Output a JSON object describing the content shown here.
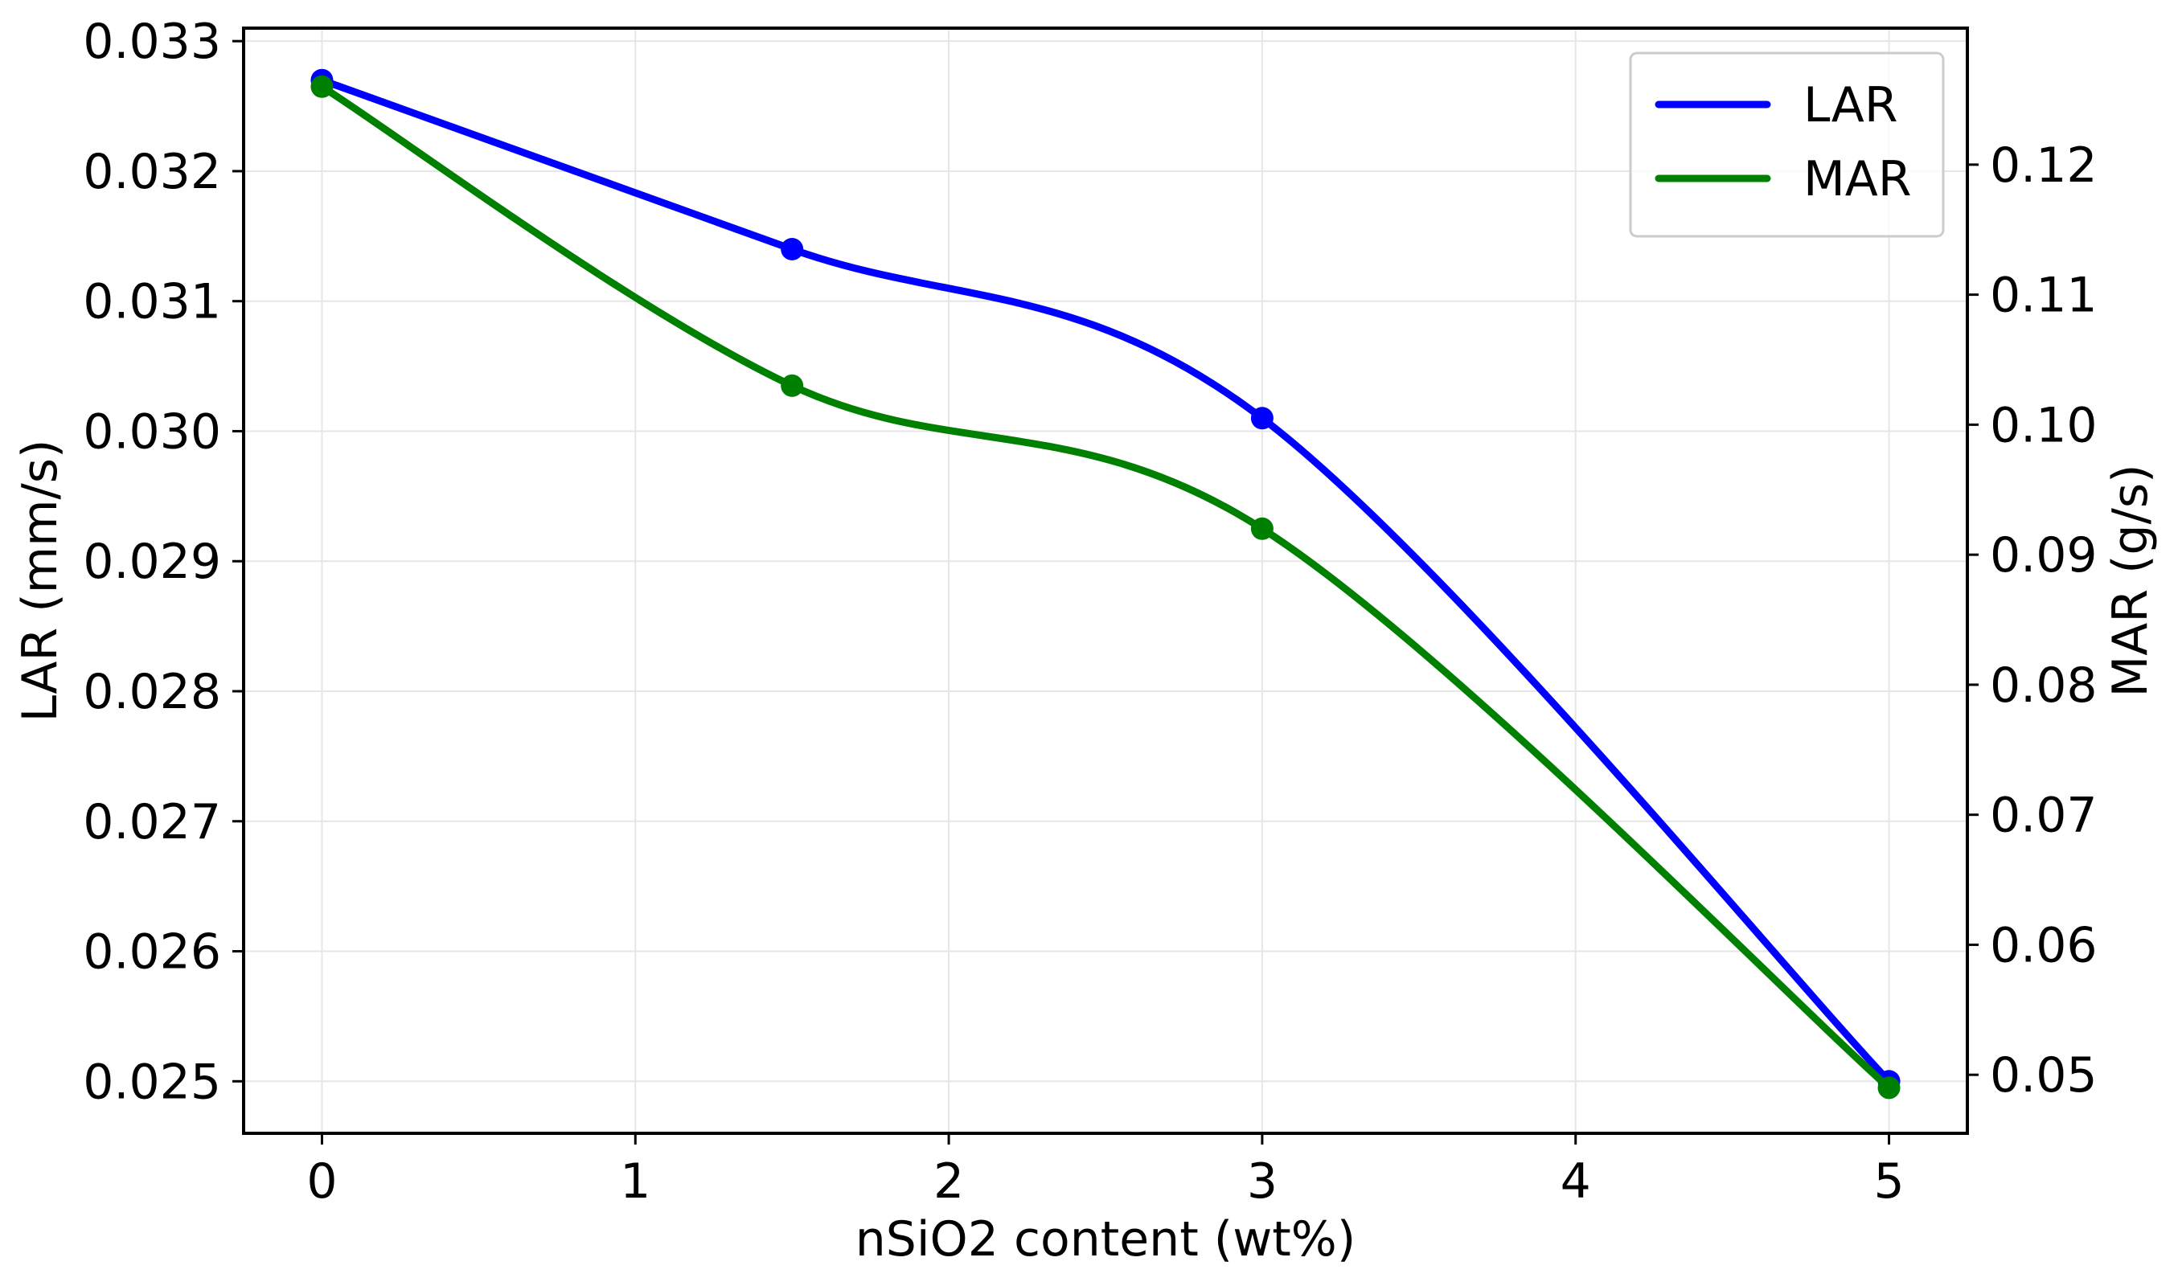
{
  "chart_data": {
    "type": "line",
    "title": "",
    "xlabel": "nSiO2 content (wt%)",
    "ylabel_left": "LAR (mm/s)",
    "ylabel_right": "MAR (g/s)",
    "xlim": [
      -0.25,
      5.25
    ],
    "ylim_left": [
      0.0246,
      0.0331
    ],
    "ylim_right": [
      0.0455,
      0.1305
    ],
    "xticks": [
      0,
      1,
      2,
      3,
      4,
      5
    ],
    "xtick_labels": [
      "0",
      "1",
      "2",
      "3",
      "4",
      "5"
    ],
    "yticks_left": [
      0.025,
      0.026,
      0.027,
      0.028,
      0.029,
      0.03,
      0.031,
      0.032,
      0.033
    ],
    "ytick_labels_left": [
      "0.025",
      "0.026",
      "0.027",
      "0.028",
      "0.029",
      "0.030",
      "0.031",
      "0.032",
      "0.033"
    ],
    "yticks_right": [
      0.05,
      0.06,
      0.07,
      0.08,
      0.09,
      0.1,
      0.11,
      0.12
    ],
    "ytick_labels_right": [
      "0.05",
      "0.06",
      "0.07",
      "0.08",
      "0.09",
      "0.10",
      "0.11",
      "0.12"
    ],
    "grid": true,
    "legend_position": "top-right",
    "series": [
      {
        "name": "LAR",
        "axis": "left",
        "color": "#0000ff",
        "x": [
          0,
          1.5,
          3,
          5
        ],
        "y": [
          0.0327,
          0.0314,
          0.0301,
          0.025
        ]
      },
      {
        "name": "MAR",
        "axis": "right",
        "color": "#008000",
        "x": [
          0,
          1.5,
          3,
          5
        ],
        "y": [
          0.126,
          0.103,
          0.092,
          0.049
        ]
      }
    ]
  }
}
